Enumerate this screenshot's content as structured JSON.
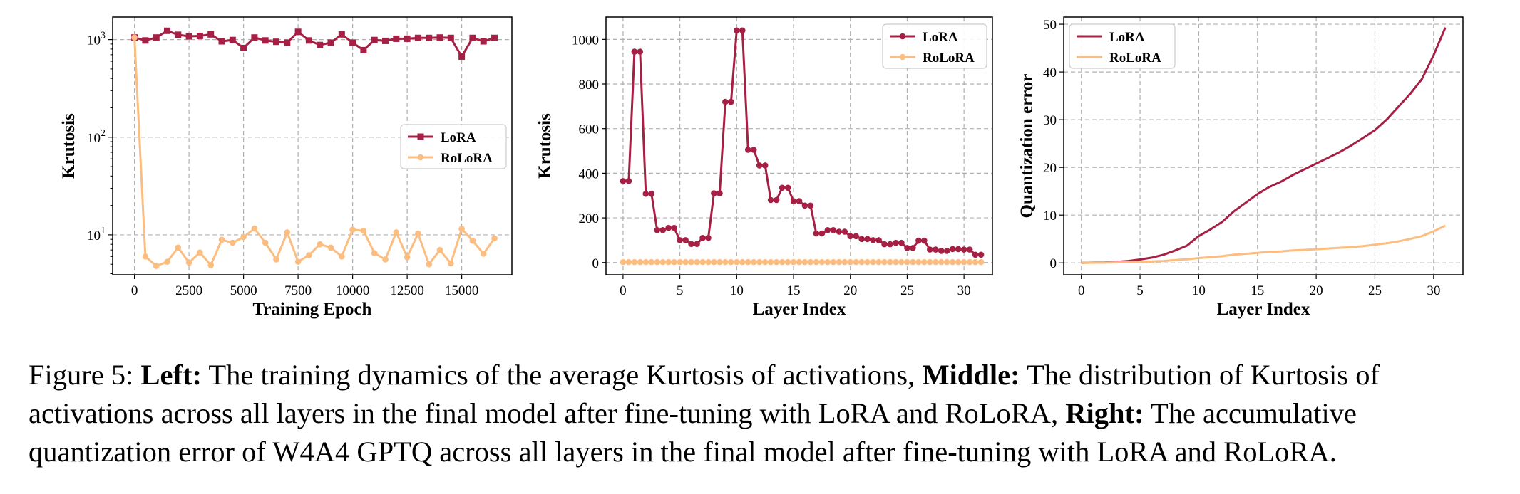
{
  "chart_data": [
    {
      "type": "line",
      "yscale": "log",
      "xlabel": "Training Epoch",
      "ylabel": "Krutosis",
      "xlim": [
        -1000,
        17300
      ],
      "ylim": [
        3.9,
        1700
      ],
      "xticks": [
        0,
        2500,
        5000,
        7500,
        10000,
        12500,
        15000
      ],
      "yticks": [
        {
          "value": 10,
          "base": "10",
          "exp": "1"
        },
        {
          "value": 100,
          "base": "10",
          "exp": "2"
        },
        {
          "value": 1000,
          "base": "10",
          "exp": "3"
        }
      ],
      "grid": true,
      "legend": "center-right",
      "series": [
        {
          "name": "LoRA",
          "color": "#a61f45",
          "marker": "square",
          "x": [
            0,
            500,
            1000,
            1500,
            2000,
            2500,
            3000,
            3500,
            4000,
            4500,
            5000,
            5500,
            6000,
            6500,
            7000,
            7500,
            8000,
            8500,
            9000,
            9500,
            10000,
            10500,
            11000,
            11500,
            12000,
            12500,
            13000,
            13500,
            14000,
            14500,
            15000,
            15500,
            16000,
            16500
          ],
          "y": [
            1050,
            980,
            1050,
            1230,
            1120,
            1080,
            1090,
            1130,
            960,
            990,
            820,
            1050,
            980,
            950,
            930,
            1200,
            980,
            880,
            930,
            1130,
            930,
            780,
            990,
            970,
            1020,
            1020,
            1040,
            1040,
            1050,
            1040,
            670,
            1040,
            960,
            1040
          ]
        },
        {
          "name": "RoLoRA",
          "color": "#fcbd80",
          "marker": "circle",
          "x": [
            0,
            500,
            1000,
            1500,
            2000,
            2500,
            3000,
            3500,
            4000,
            4500,
            5000,
            5500,
            6000,
            6500,
            7000,
            7500,
            8000,
            8500,
            9000,
            9500,
            10000,
            10500,
            11000,
            11500,
            12000,
            12500,
            13000,
            13500,
            14000,
            14500,
            15000,
            15500,
            16000,
            16500
          ],
          "y": [
            1050,
            6.0,
            4.8,
            5.3,
            7.4,
            5.2,
            6.6,
            4.9,
            8.9,
            8.3,
            9.5,
            11.6,
            8.3,
            5.6,
            10.6,
            5.3,
            6.2,
            8.0,
            7.4,
            6.0,
            11.3,
            11.0,
            6.5,
            5.6,
            10.6,
            5.9,
            10.3,
            5.0,
            7.0,
            5.1,
            11.5,
            8.7,
            6.4,
            9.2
          ]
        }
      ]
    },
    {
      "type": "line",
      "xlabel": "Layer Index",
      "ylabel": "Krutosis",
      "xlim": [
        -1.5,
        32.5
      ],
      "ylim": [
        -55,
        1100
      ],
      "xticks": [
        0,
        5,
        10,
        15,
        20,
        25,
        30
      ],
      "yticks": [
        0,
        200,
        400,
        600,
        800,
        1000
      ],
      "grid": true,
      "legend": "top-right",
      "series": [
        {
          "name": "LoRA",
          "color": "#a61f45",
          "marker": "circle",
          "x": [
            0,
            0.5,
            1,
            1.5,
            2,
            2.5,
            3,
            3.5,
            4,
            4.5,
            5,
            5.5,
            6,
            6.5,
            7,
            7.5,
            8,
            8.5,
            9,
            9.5,
            10,
            10.5,
            11,
            11.5,
            12,
            12.5,
            13,
            13.5,
            14,
            14.5,
            15,
            15.5,
            16,
            16.5,
            17,
            17.5,
            18,
            18.5,
            19,
            19.5,
            20,
            20.5,
            21,
            21.5,
            22,
            22.5,
            23,
            23.5,
            24,
            24.5,
            25,
            25.5,
            26,
            26.5,
            27,
            27.5,
            28,
            28.5,
            29,
            29.5,
            30,
            30.5,
            31,
            31.5
          ],
          "y": [
            365,
            365,
            945,
            945,
            308,
            308,
            145,
            145,
            155,
            155,
            100,
            100,
            83,
            83,
            110,
            110,
            310,
            310,
            720,
            720,
            1040,
            1040,
            505,
            505,
            435,
            435,
            280,
            280,
            335,
            335,
            275,
            275,
            255,
            255,
            130,
            130,
            145,
            145,
            138,
            138,
            118,
            118,
            105,
            105,
            100,
            100,
            82,
            82,
            88,
            88,
            65,
            65,
            98,
            98,
            58,
            58,
            52,
            52,
            60,
            60,
            58,
            58,
            35,
            35
          ]
        },
        {
          "name": "RoLoRA",
          "color": "#fcbd80",
          "marker": "circle",
          "x": [
            0,
            0.5,
            1,
            1.5,
            2,
            2.5,
            3,
            3.5,
            4,
            4.5,
            5,
            5.5,
            6,
            6.5,
            7,
            7.5,
            8,
            8.5,
            9,
            9.5,
            10,
            10.5,
            11,
            11.5,
            12,
            12.5,
            13,
            13.5,
            14,
            14.5,
            15,
            15.5,
            16,
            16.5,
            17,
            17.5,
            18,
            18.5,
            19,
            19.5,
            20,
            20.5,
            21,
            21.5,
            22,
            22.5,
            23,
            23.5,
            24,
            24.5,
            25,
            25.5,
            26,
            26.5,
            27,
            27.5,
            28,
            28.5,
            29,
            29.5,
            30,
            30.5,
            31,
            31.5
          ],
          "y": [
            2,
            2,
            2,
            2,
            2,
            2,
            2,
            2,
            2,
            2,
            2,
            2,
            2,
            2,
            2,
            2,
            2,
            2,
            2,
            2,
            2,
            2,
            2,
            2,
            2,
            2,
            2,
            2,
            2,
            2,
            2,
            2,
            2,
            2,
            2,
            2,
            2,
            2,
            2,
            2,
            2,
            2,
            2,
            2,
            2,
            2,
            2,
            2,
            2,
            2,
            2,
            2,
            2,
            2,
            2,
            2,
            2,
            2,
            2,
            2,
            2,
            2,
            2,
            2
          ]
        }
      ]
    },
    {
      "type": "line",
      "xlabel": "Layer Index",
      "ylabel": "Quantization error",
      "xlim": [
        -1.5,
        32.5
      ],
      "ylim": [
        -2.5,
        51.5
      ],
      "xticks": [
        0,
        5,
        10,
        15,
        20,
        25,
        30
      ],
      "yticks": [
        0,
        10,
        20,
        30,
        40,
        50
      ],
      "grid": true,
      "legend": "top-left",
      "series": [
        {
          "name": "LoRA",
          "color": "#a61f45",
          "marker": "none",
          "x": [
            0,
            1,
            2,
            3,
            4,
            5,
            6,
            7,
            8,
            9,
            10,
            11,
            12,
            13,
            14,
            15,
            16,
            17,
            18,
            19,
            20,
            21,
            22,
            23,
            24,
            25,
            26,
            27,
            28,
            29,
            30,
            31
          ],
          "y": [
            0,
            0.05,
            0.1,
            0.2,
            0.4,
            0.7,
            1.1,
            1.7,
            2.6,
            3.6,
            5.6,
            7.0,
            8.6,
            10.8,
            12.6,
            14.4,
            15.9,
            17.0,
            18.4,
            19.6,
            20.8,
            22.0,
            23.2,
            24.6,
            26.2,
            27.8,
            30.0,
            32.7,
            35.4,
            38.5,
            43.5,
            49.3
          ]
        },
        {
          "name": "RoLoRA",
          "color": "#fcbd80",
          "marker": "none",
          "x": [
            0,
            1,
            2,
            3,
            4,
            5,
            6,
            7,
            8,
            9,
            10,
            11,
            12,
            13,
            14,
            15,
            16,
            17,
            18,
            19,
            20,
            21,
            22,
            23,
            24,
            25,
            26,
            27,
            28,
            29,
            30,
            31
          ],
          "y": [
            0,
            0.02,
            0.05,
            0.1,
            0.15,
            0.2,
            0.3,
            0.4,
            0.6,
            0.75,
            1.0,
            1.2,
            1.4,
            1.7,
            1.9,
            2.1,
            2.3,
            2.4,
            2.6,
            2.7,
            2.85,
            3.0,
            3.15,
            3.3,
            3.5,
            3.8,
            4.1,
            4.5,
            5.0,
            5.6,
            6.6,
            7.8
          ]
        }
      ]
    }
  ],
  "caption": {
    "figure_label": "Figure 5:",
    "left_label": "Left:",
    "left_text": "The training dynamics of the average Kurtosis of activations,",
    "middle_label": "Middle:",
    "middle_text": "The distribution of Kurtosis of",
    "line2_text": "activations across all layers in the final model after fine-tuning with LoRA and RoLoRA,",
    "right_label": "Right:",
    "right_text": "The accumulative",
    "line3_text": "quantization error of W4A4 GPTQ across all layers in the final model after fine-tuning with LoRA and RoLoRA."
  }
}
